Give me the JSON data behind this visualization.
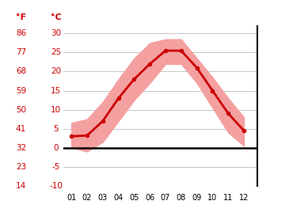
{
  "months": [
    1,
    2,
    3,
    4,
    5,
    6,
    7,
    8,
    9,
    10,
    11,
    12
  ],
  "month_labels": [
    "01",
    "02",
    "03",
    "04",
    "05",
    "06",
    "07",
    "08",
    "09",
    "10",
    "11",
    "12"
  ],
  "mean_temp": [
    3.0,
    3.2,
    7.0,
    13.0,
    18.0,
    22.0,
    25.5,
    25.5,
    21.0,
    15.0,
    9.0,
    4.5
  ],
  "max_temp": [
    6.5,
    7.5,
    12.0,
    18.0,
    23.5,
    27.5,
    28.5,
    28.5,
    23.5,
    18.5,
    13.0,
    8.0
  ],
  "min_temp": [
    0.0,
    -1.0,
    1.5,
    7.0,
    12.5,
    17.0,
    22.0,
    22.0,
    17.0,
    10.5,
    4.0,
    0.5
  ],
  "line_color": "#cc0000",
  "fill_color": "#f4a0a0",
  "background": "#ffffff",
  "grid_color": "#bbbbbb",
  "axis_color": "#000000",
  "label_color": "#cc0000",
  "ylim": [
    -10,
    32
  ],
  "yticks_c": [
    -10,
    -5,
    0,
    5,
    10,
    15,
    20,
    25,
    30
  ],
  "yticks_f": [
    14,
    23,
    32,
    41,
    50,
    59,
    68,
    77,
    86
  ],
  "ylabel_c": "°C",
  "ylabel_f": "°F",
  "figsize": [
    3.65,
    2.73
  ],
  "dpi": 100
}
